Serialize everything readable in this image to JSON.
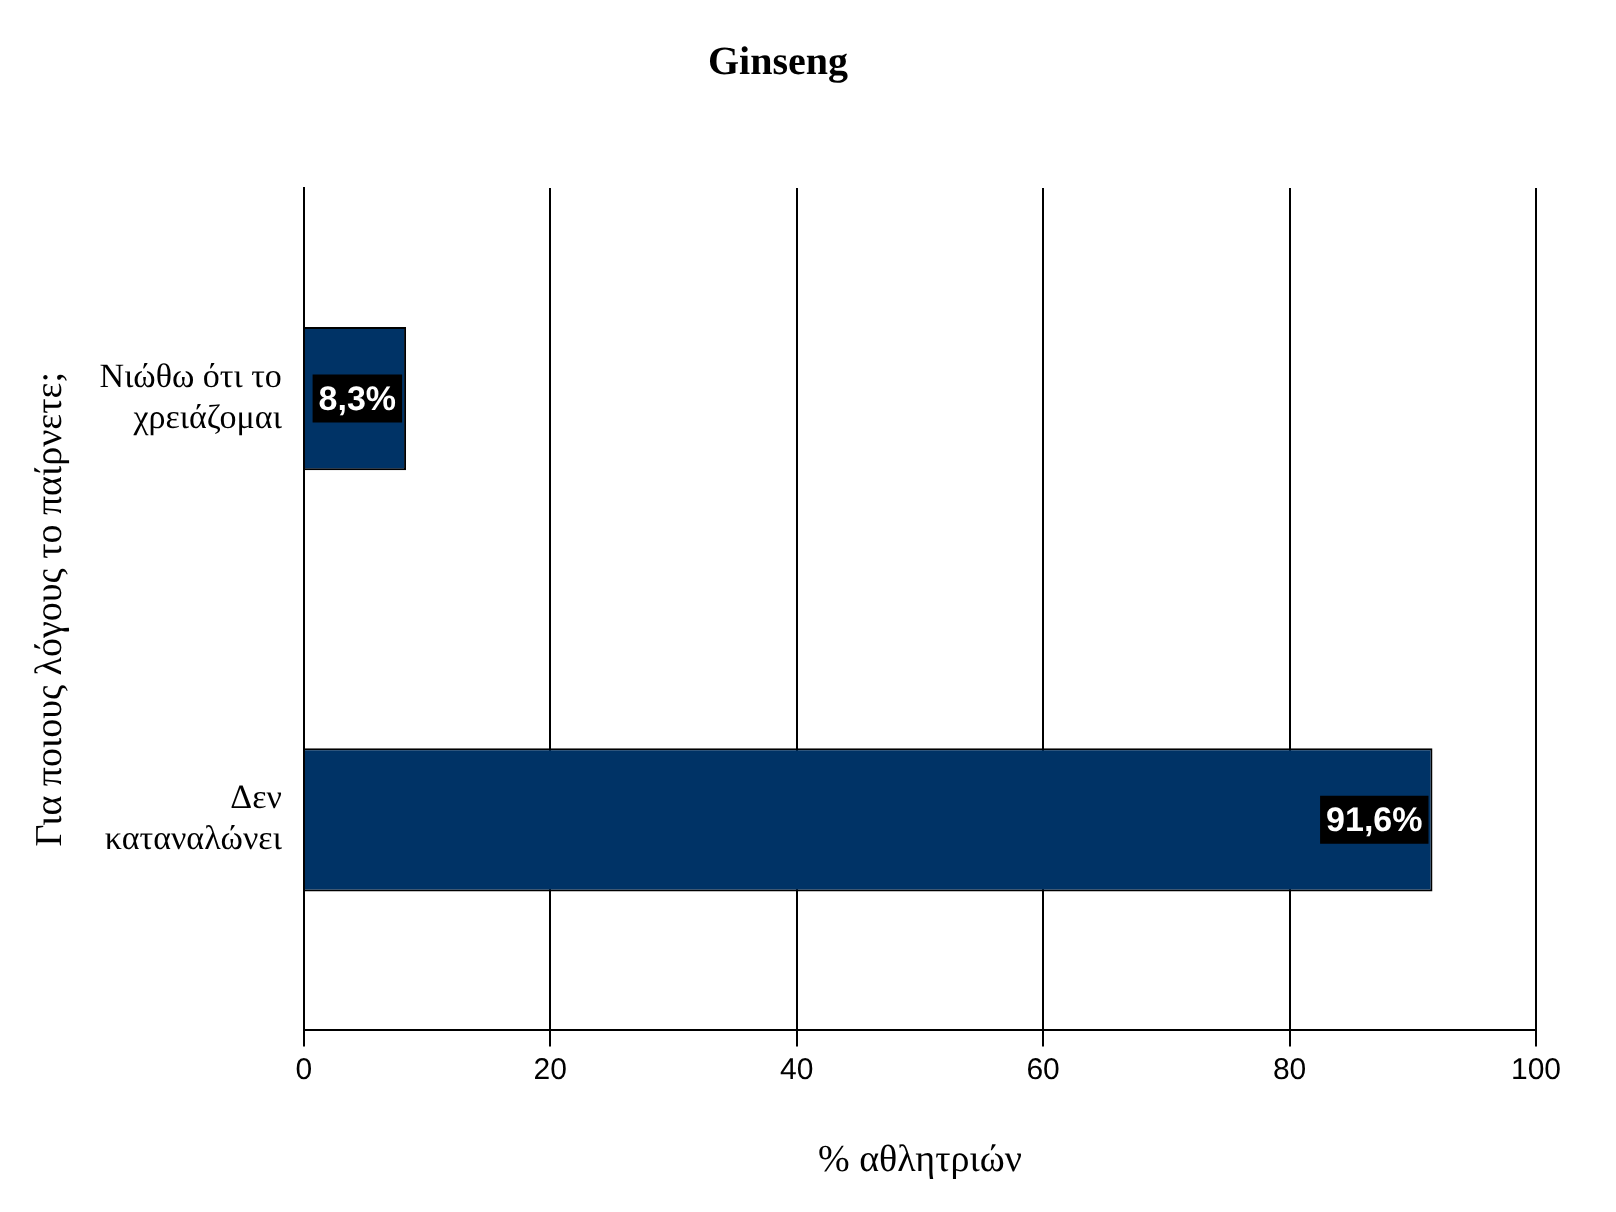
{
  "chart_data": {
    "type": "bar",
    "orientation": "horizontal",
    "title": "Ginseng",
    "xlabel": "% αθλητριών",
    "ylabel": "Για ποιους λόγους το παίρνετε;",
    "categories": [
      "Νιώθω ότι το χρειάζομαι",
      "Δεν καταναλώνει"
    ],
    "values": [
      8.3,
      91.6
    ],
    "value_labels": [
      "8,3%",
      "91,6%"
    ],
    "color": "#003366",
    "xlim": [
      0,
      100
    ],
    "xticks": [
      0,
      20,
      40,
      60,
      80,
      100
    ],
    "grid": "x",
    "legend": false
  }
}
